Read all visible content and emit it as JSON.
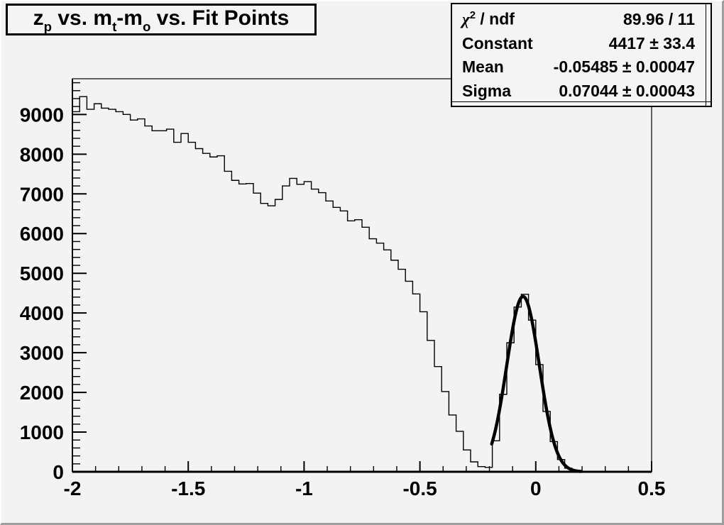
{
  "canvas": {
    "background": "#f3f3f3",
    "bevel_color": "#9e9e9e",
    "line_color": "#000000"
  },
  "title": {
    "full": "z_p vs. m_t-m_o vs. Fit Points",
    "p1": "z",
    "s1": "p",
    "p2": " vs. m",
    "s2": "t",
    "p3": "-m",
    "s3": "o",
    "p4": " vs. Fit Points"
  },
  "stats": {
    "rows": [
      {
        "label": "χ² / ndf",
        "label_main": "χ",
        "label_sup": "2",
        "label_rest": " / ndf",
        "value": "89.96 / 11"
      },
      {
        "label": "Constant",
        "value": "4417 ± 33.4"
      },
      {
        "label": "Mean",
        "value": "-0.05485 ± 0.00047"
      },
      {
        "label": "Sigma",
        "value": "0.07044 ± 0.00043"
      }
    ]
  },
  "chart_data": {
    "type": "histogram",
    "title": "z_p vs. m_t-m_o vs. Fit Points",
    "xlabel": "",
    "ylabel": "",
    "xlim": [
      -2,
      0.5
    ],
    "ylim": [
      0,
      9900
    ],
    "grid": false,
    "x_ticks": [
      -2,
      -1.5,
      -1,
      -0.5,
      0,
      0.5
    ],
    "x_tick_labels": [
      "-2",
      "-1.5",
      "-1",
      "-0.5",
      "0",
      "0.5"
    ],
    "x_minor_step": 0.1,
    "y_ticks": [
      0,
      1000,
      2000,
      3000,
      4000,
      5000,
      6000,
      7000,
      8000,
      9000
    ],
    "y_tick_labels": [
      "0",
      "1000",
      "2000",
      "3000",
      "4000",
      "5000",
      "6000",
      "7000",
      "8000",
      "9000"
    ],
    "y_minor_step": 200,
    "bins": {
      "x_start": -2,
      "bin_width": 0.03125,
      "values": [
        9070,
        9450,
        9130,
        9270,
        9160,
        9130,
        9070,
        9000,
        8860,
        8890,
        8710,
        8590,
        8590,
        8630,
        8300,
        8520,
        8300,
        8140,
        8020,
        7930,
        7960,
        7570,
        7340,
        7250,
        7260,
        7020,
        6760,
        6700,
        6860,
        7200,
        7390,
        7240,
        7310,
        7120,
        7030,
        6820,
        6660,
        6570,
        6320,
        6350,
        6160,
        5870,
        5760,
        5590,
        5330,
        5100,
        4800,
        4480,
        4030,
        3310,
        2650,
        2020,
        1430,
        1020,
        550,
        250,
        130,
        110,
        780,
        1950,
        3250,
        4150,
        4470,
        3820,
        2700,
        1520,
        760,
        310,
        90,
        25,
        8,
        0,
        0,
        0,
        0,
        0,
        0,
        0,
        0,
        0
      ]
    },
    "fit": {
      "type": "gaussian",
      "chi2": 89.96,
      "ndf": 11,
      "constant": 4417,
      "constant_err": 33.4,
      "mean": -0.05485,
      "mean_err": 0.00047,
      "sigma": 0.07044,
      "sigma_err": 0.00043,
      "draw_range": [
        -0.19,
        0.195
      ]
    },
    "legend": "stats box, top right"
  }
}
